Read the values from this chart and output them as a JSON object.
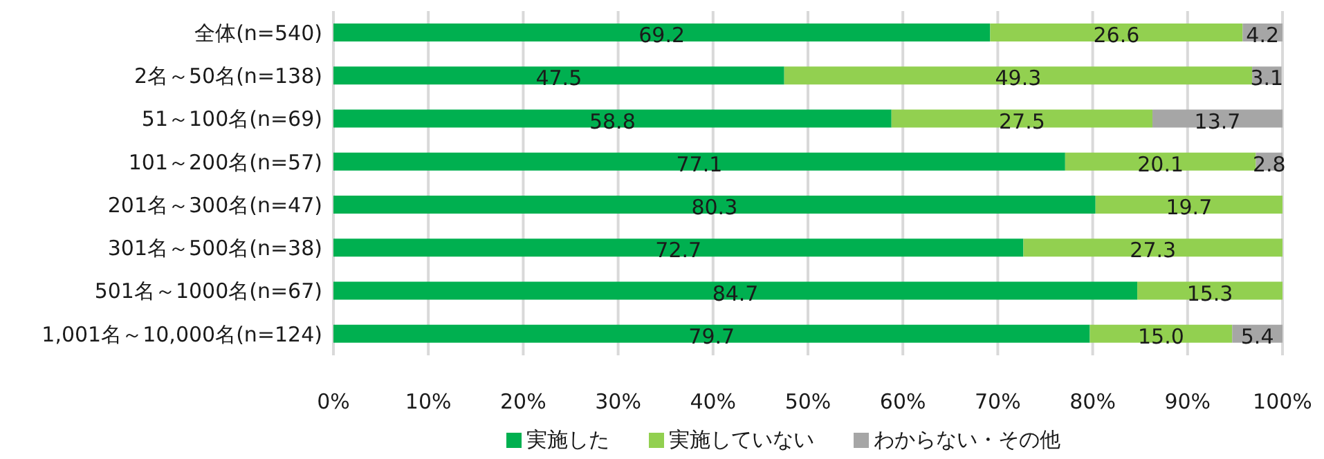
{
  "chart_data": {
    "type": "bar",
    "orientation": "horizontal",
    "stacked": true,
    "categories": [
      "全体(n=540)",
      "2名～50名(n=138)",
      "51～100名(n=69)",
      "101～200名(n=57)",
      "201名～300名(n=47)",
      "301名～500名(n=38)",
      "501名～1000名(n=67)",
      "1,001名～10,000名(n=124)"
    ],
    "series": [
      {
        "name": "実施した",
        "color": "#00b050",
        "values": [
          69.2,
          47.5,
          58.8,
          77.1,
          80.3,
          72.7,
          84.7,
          79.7
        ],
        "value_labels": [
          "69.2",
          "47.5",
          "58.8",
          "77.1",
          "80.3",
          "72.7",
          "84.7",
          "79.7"
        ]
      },
      {
        "name": "実施していない",
        "color": "#92d050",
        "values": [
          26.6,
          49.3,
          27.5,
          20.1,
          19.7,
          27.3,
          15.3,
          15.0
        ],
        "value_labels": [
          "26.6",
          "49.3",
          "27.5",
          "20.1",
          "19.7",
          "27.3",
          "15.3",
          "15.0"
        ]
      },
      {
        "name": "わからない・その他",
        "color": "#a6a6a6",
        "values": [
          4.2,
          3.1,
          13.7,
          2.8,
          null,
          null,
          null,
          5.4
        ],
        "value_labels": [
          "4.2",
          "3.1",
          "13.7",
          "2.8",
          null,
          null,
          null,
          "5.4"
        ]
      }
    ],
    "xlim": [
      0,
      100
    ],
    "xticks": [
      {
        "value": 0,
        "label": "0%"
      },
      {
        "value": 10,
        "label": "10%"
      },
      {
        "value": 20,
        "label": "20%"
      },
      {
        "value": 30,
        "label": "30%"
      },
      {
        "value": 40,
        "label": "40%"
      },
      {
        "value": 50,
        "label": "50%"
      },
      {
        "value": 60,
        "label": "60%"
      },
      {
        "value": 70,
        "label": "70%"
      },
      {
        "value": 80,
        "label": "80%"
      },
      {
        "value": 90,
        "label": "90%"
      },
      {
        "value": 100,
        "label": "100%"
      }
    ],
    "grid": "x",
    "legend": "bottom"
  }
}
